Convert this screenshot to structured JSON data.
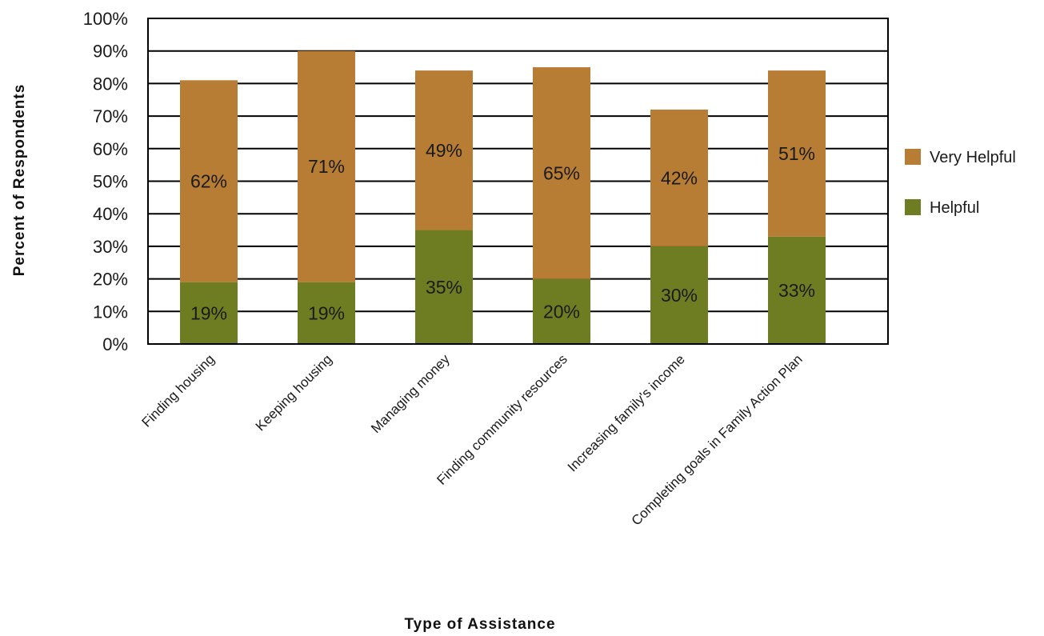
{
  "chart_data": {
    "type": "bar",
    "stacked": true,
    "title": "",
    "xlabel": "Type of Assistance",
    "ylabel": "Percent of Respondents",
    "ylim": [
      0,
      100
    ],
    "yticks": [
      0,
      10,
      20,
      30,
      40,
      50,
      60,
      70,
      80,
      90,
      100
    ],
    "ytick_labels": [
      "0%",
      "10%",
      "20%",
      "30%",
      "40%",
      "50%",
      "60%",
      "70%",
      "80%",
      "90%",
      "100%"
    ],
    "grid": "horizontal",
    "legend_position": "right",
    "categories": [
      "Finding housing",
      "Keeping housing",
      "Managing money",
      "Finding community resources",
      "Increasing family's income",
      "Completing goals in Family Action Plan"
    ],
    "series": [
      {
        "name": "Helpful",
        "color": "#6e7d22",
        "values": [
          19,
          19,
          35,
          20,
          30,
          33
        ],
        "labels": [
          "19%",
          "19%",
          "35%",
          "20%",
          "30%",
          "33%"
        ]
      },
      {
        "name": "Very Helpful",
        "color": "#b87d34",
        "values": [
          62,
          71,
          49,
          65,
          42,
          51
        ],
        "labels": [
          "62%",
          "71%",
          "49%",
          "65%",
          "42%",
          "51%"
        ]
      }
    ],
    "legend_order": [
      "Very Helpful",
      "Helpful"
    ]
  }
}
